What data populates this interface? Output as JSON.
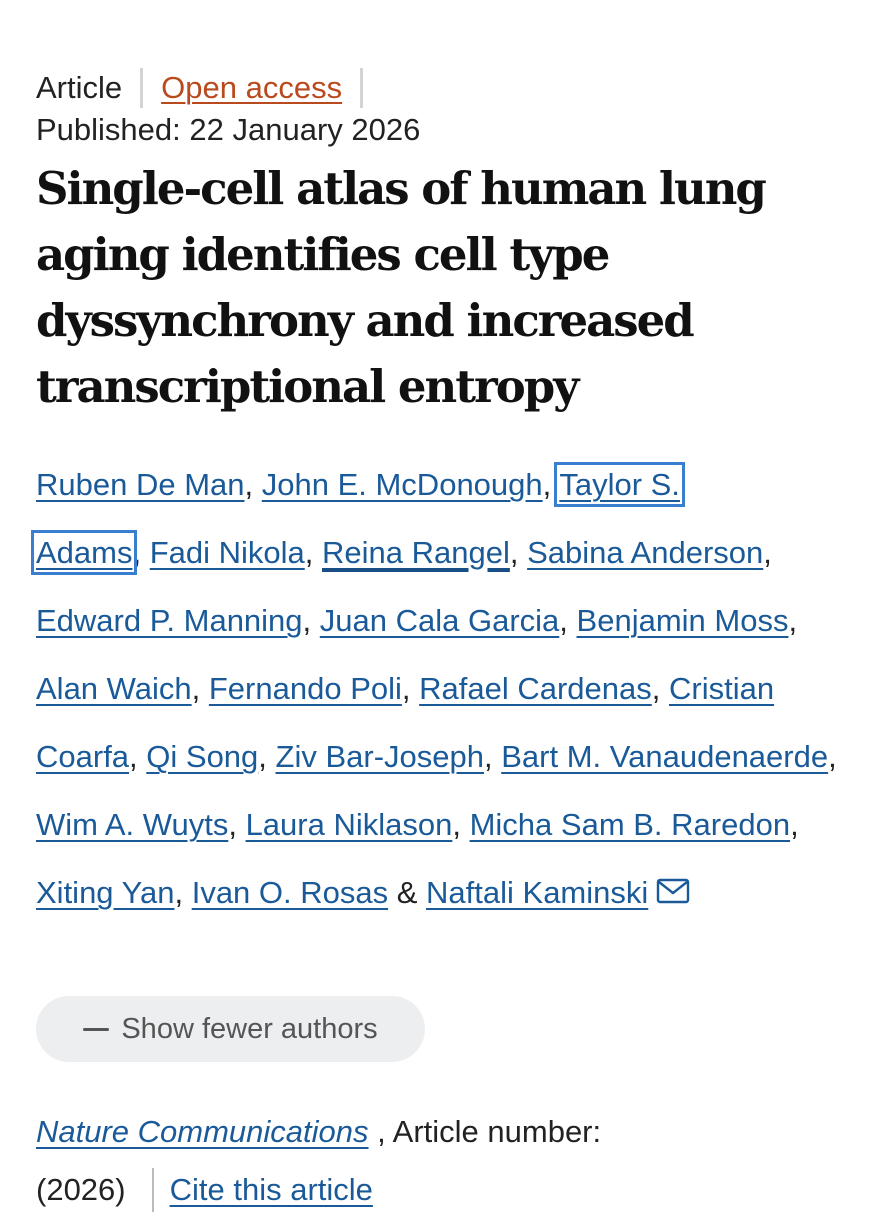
{
  "article": {
    "type": "Article",
    "access": "Open access",
    "published": "Published: 22 January 2026",
    "title": "Single-cell atlas of human lung aging identifies cell type dyssynchrony and increased transcriptional entropy"
  },
  "authors": [
    {
      "name": "Ruben De Man",
      "sep": ", "
    },
    {
      "name": "John E. McDonough",
      "sep": ", "
    },
    {
      "name": "Taylor S. Adams",
      "sep": ", ",
      "highlighted": true
    },
    {
      "name": "Fadi Nikola",
      "sep": ", "
    },
    {
      "name": "Reina Rangel",
      "sep": ", "
    },
    {
      "name": "Sabina Anderson",
      "sep": ", "
    },
    {
      "name": "Edward P. Manning",
      "sep": ", "
    },
    {
      "name": "Juan Cala Garcia",
      "sep": ", "
    },
    {
      "name": "Benjamin Moss",
      "sep": ", "
    },
    {
      "name": "Alan Waich",
      "sep": ", "
    },
    {
      "name": "Fernando Poli",
      "sep": ", "
    },
    {
      "name": "Rafael Cardenas",
      "sep": ", "
    },
    {
      "name": "Cristian Coarfa",
      "sep": ", "
    },
    {
      "name": "Qi Song",
      "sep": ", "
    },
    {
      "name": "Ziv Bar-Joseph",
      "sep": ", "
    },
    {
      "name": "Bart M. Vanaudenaerde",
      "sep": ", "
    },
    {
      "name": "Wim A. Wuyts",
      "sep": ", "
    },
    {
      "name": "Laura Niklason",
      "sep": ", "
    },
    {
      "name": "Micha Sam B. Raredon",
      "sep": ", "
    },
    {
      "name": "Xiting Yan",
      "sep": ", "
    },
    {
      "name": "Ivan O. Rosas",
      "sep": " & "
    },
    {
      "name": "Naftali Kaminski",
      "sep": "",
      "corresponding": true
    }
  ],
  "authors_part1": {
    "a1": "Ruben De Man",
    "a2": "John E. McDonough",
    "a3a": "Taylor S.",
    "a3b": "Adams",
    "a4": "Fadi Nikola",
    "a5": "Reina Rangel",
    "a6": "Sabina Anderson",
    "a7": "Edward P. Manning",
    "a8": "Juan Cala Garcia",
    "a9": "Benjamin Moss",
    "a10": "Alan Waich",
    "a11": "Fernando Poli",
    "a12": "Rafael Cardenas",
    "a13": "Cristian Coarfa",
    "a14": "Qi Song",
    "a15": "Ziv Bar-Joseph",
    "a16": "Bart M. Vanaudenaerde",
    "a17": "Wim A. Wuyts",
    "a18": "Laura Niklason",
    "a19": "Micha Sam B. Raredon",
    "a20": "Xiting Yan",
    "a21": "Ivan O. Rosas",
    "a22": "Naftali Kaminski"
  },
  "icons": {
    "corresponding": "mail-icon",
    "toggle": "minus-icon"
  },
  "toggle_authors_label": "Show fewer authors",
  "citation": {
    "journal": "Nature Communications",
    "article_number_label": " , Article number:",
    "year": "(2026)",
    "cite_label": "Cite this article"
  },
  "colors": {
    "link": "#1a5a99",
    "open_access": "#b94a1e",
    "highlight_box": "#3a7ed0",
    "button_bg": "#eceef0"
  }
}
